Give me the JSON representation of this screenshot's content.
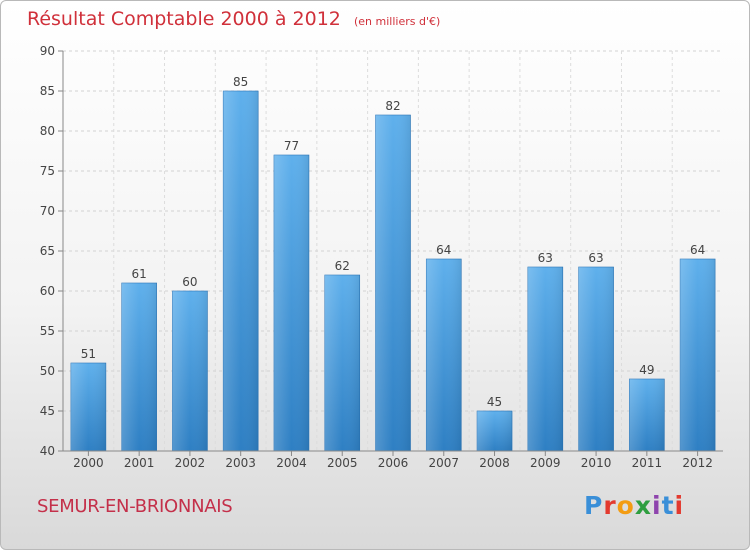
{
  "title": "Résultat Comptable 2000 à 2012",
  "unit": "(en milliers d'€)",
  "commune": "SEMUR-EN-BRIONNAIS",
  "logo": {
    "letters": [
      "P",
      "r",
      "o",
      "x",
      "i",
      "t",
      "i"
    ],
    "colors": [
      "#3a8fd8",
      "#e33a2f",
      "#f39c12",
      "#2e9e3f",
      "#8e44ad",
      "#3a8fd8",
      "#e33a2f"
    ]
  },
  "chart_data": {
    "type": "bar",
    "title": "Résultat Comptable 2000 à 2012",
    "xlabel": "",
    "ylabel": "en milliers d'€",
    "categories": [
      "2000",
      "2001",
      "2002",
      "2003",
      "2004",
      "2005",
      "2006",
      "2007",
      "2008",
      "2009",
      "2010",
      "2011",
      "2012"
    ],
    "values": [
      51,
      61,
      60,
      85,
      77,
      62,
      82,
      64,
      45,
      63,
      63,
      49,
      64
    ],
    "ylim": [
      40,
      90
    ],
    "yticks": [
      40,
      45,
      50,
      55,
      60,
      65,
      70,
      75,
      80,
      85,
      90
    ],
    "grid": true,
    "bar_color_top": "#5fb0ec",
    "bar_color_bottom": "#2e7fc3"
  }
}
